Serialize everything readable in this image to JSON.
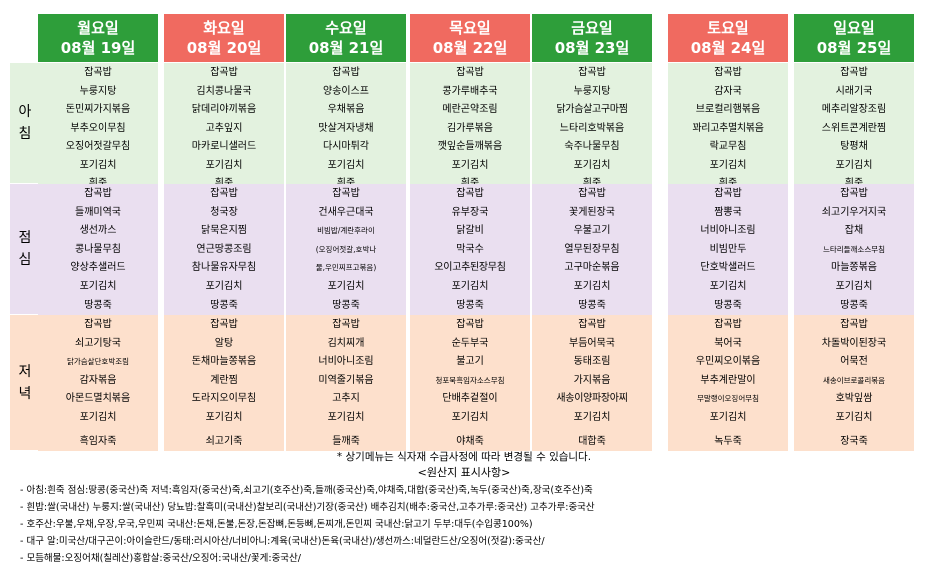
{
  "meal_labels": {
    "breakfast": [
      "아",
      "침"
    ],
    "lunch": [
      "점",
      "심"
    ],
    "dinner": [
      "저",
      "녁"
    ]
  },
  "colors": {
    "weekday_header": "#2e9e3a",
    "weekend_header": "#f06a60",
    "breakfast_bg": "#e3f2df",
    "lunch_bg": "#eadff0",
    "dinner_bg": "#fde0cc"
  },
  "days": [
    {
      "day": "월요일",
      "date": "08월  19일",
      "header_color": "green",
      "breakfast": [
        "잡곡밥",
        "누룽지탕",
        "돈민찌가지볶음",
        "부추오이무침",
        "오징어젓갈무침",
        "포기김치",
        "흰죽"
      ],
      "lunch": [
        "잡곡밥",
        "들깨미역국",
        "생선까스",
        "콩나물무침",
        "양상추샐러드",
        "포기김치",
        "",
        "땅콩죽"
      ],
      "dinner": [
        "잡곡밥",
        "쇠고기탕국",
        "닭가슴살단호박조림",
        "감자볶음",
        "아몬드멸치볶음",
        "포기김치",
        "",
        "흑임자죽"
      ]
    },
    {
      "day": "화요일",
      "date": "08월  20일",
      "header_color": "red",
      "breakfast": [
        "잡곡밥",
        "김치콩나물국",
        "닭데리야끼볶음",
        "고추잎지",
        "마카로니샐러드",
        "포기김치",
        "흰죽"
      ],
      "lunch": [
        "잡곡밥",
        "청국장",
        "닭묵은지찜",
        "연근땅콩조림",
        "참나물유자무침",
        "포기김치",
        "",
        "땅콩죽"
      ],
      "dinner": [
        "잡곡밥",
        "알탕",
        "돈채마늘쫑볶음",
        "계란찜",
        "도라지오이무침",
        "포기김치",
        "",
        "쇠고기죽"
      ]
    },
    {
      "day": "수요일",
      "date": "08월  21일",
      "header_color": "green",
      "breakfast": [
        "잡곡밥",
        "양송이스프",
        "우채볶음",
        "맛살겨자냉채",
        "다시마튀각",
        "포기김치",
        "흰죽"
      ],
      "lunch": [
        "잡곡밥",
        "건새우근대국",
        "비빔밥/계란후라이",
        "(오징어젓갈,호박나",
        "물,우민찌프고볶음)",
        "포기김치",
        "",
        "땅콩죽"
      ],
      "dinner": [
        "잡곡밥",
        "김치찌개",
        "너비아니조림",
        "미역줄기볶음",
        "고추지",
        "포기김치",
        "",
        "들깨죽"
      ]
    },
    {
      "day": "목요일",
      "date": "08월  22일",
      "header_color": "red",
      "breakfast": [
        "잡곡밥",
        "콩가루배추국",
        "메란곤약조림",
        "김가루볶음",
        "깻잎순들깨볶음",
        "포기김치",
        "흰죽"
      ],
      "lunch": [
        "잡곡밥",
        "유부장국",
        "닭갈비",
        "막국수",
        "오이고추된장무침",
        "포기김치",
        "",
        "땅콩죽"
      ],
      "dinner": [
        "잡곡밥",
        "순두부국",
        "불고기",
        "청포묵흑임자소스무침",
        "단배추겉절이",
        "포기김치",
        "",
        "야채죽"
      ]
    },
    {
      "day": "금요일",
      "date": "08월  23일",
      "header_color": "green",
      "breakfast": [
        "잡곡밥",
        "누룽지탕",
        "닭가슴살고구마찜",
        "느타리호박볶음",
        "숙주나물무침",
        "포기김치",
        "흰죽"
      ],
      "lunch": [
        "잡곡밥",
        "꽃게된장국",
        "우불고기",
        "열무된장무침",
        "고구마순볶음",
        "포기김치",
        "",
        "땅콩죽"
      ],
      "dinner": [
        "잡곡밥",
        "부듬어묵국",
        "동태조림",
        "가지볶음",
        "새송이양파장아찌",
        "포기김치",
        "",
        "대합죽"
      ]
    },
    {
      "day": "토요일",
      "date": "08월  24일",
      "header_color": "red",
      "breakfast": [
        "잡곡밥",
        "감자국",
        "브로컬리햄볶음",
        "꽈리고추멸치볶음",
        "락교무침",
        "포기김치",
        "흰죽"
      ],
      "lunch": [
        "잡곡밥",
        "짬뽕국",
        "너비아니조림",
        "비빔만두",
        "단호박샐러드",
        "포기김치",
        "",
        "땅콩죽"
      ],
      "dinner": [
        "잡곡밥",
        "북어국",
        "우민찌오이볶음",
        "부추계란말이",
        "무말랭이오징어무침",
        "포기김치",
        "",
        "녹두죽"
      ]
    },
    {
      "day": "일요일",
      "date": "08월  25일",
      "header_color": "green",
      "breakfast": [
        "잡곡밥",
        "시래기국",
        "메추리알장조림",
        "스위트콘계란찜",
        "탕평채",
        "포기김치",
        "흰죽"
      ],
      "lunch": [
        "잡곡밥",
        "쇠고기우거지국",
        "잡채",
        "느타리들깨소스무침",
        "마늘쫑볶음",
        "포기김치",
        "",
        "땅콩죽"
      ],
      "dinner": [
        "잡곡밥",
        "차돌박이된장국",
        "어묵전",
        "새송이브로콜리볶음",
        "호박잎쌈",
        "포기김치",
        "",
        "장국죽"
      ]
    }
  ],
  "notice": "*  상기메뉴는  식자재  수급사정에  따라  변경될  수  있습니다.",
  "origin_title": "<원산지  표시사항>",
  "origin_lines": [
    "-  아침:흰죽   점심:땅콩(중국산)죽  저녁:흑임자(중국산)죽,쇠고기(호주산)죽,들깨(중국산)죽,야채죽,대합(중국산)죽,녹두(중국산)죽,장국(호주산)죽",
    "-  흰밥:쌀(국내산)   누룽지:쌀(국내산)  당뇨밥:찰흑미(국내산)찰보리(국내산)기장(중국산)  배추김치(배추:중국산,고추가루:중국산)  고추가루:중국산",
    "-  호주산:우불,우채,우장,우국,우민찌    국내산:돈채,돈불,돈장,돈잡뼈,돈등뼈,돈찌개,돈민찌     국내산:닭고기     두부:대두(수입콩100%)",
    "-  대구 알:미국산/대구곤이:아이슬란드/동태:러시아산/너비아니:계육(국내산)돈육(국내산)/생선까스:네덜란드산/오징어(젓갈):중국산/",
    "-  모듬해물:오징어채(칠레산)홍합살:중국산/오징어:국내산/꽃게:중국산/"
  ]
}
